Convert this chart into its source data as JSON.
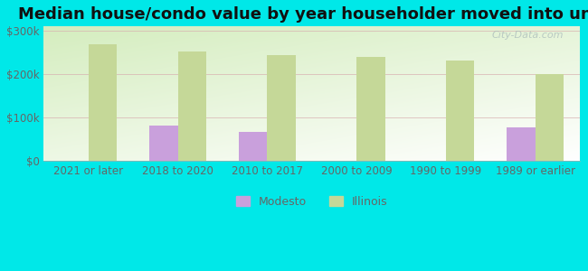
{
  "title": "Median house/condo value by year householder moved into unit",
  "categories": [
    "2021 or later",
    "2018 to 2020",
    "2010 to 2017",
    "2000 to 2009",
    "1990 to 1999",
    "1989 or earlier"
  ],
  "modesto_values": [
    null,
    82000,
    67000,
    null,
    null,
    78000
  ],
  "illinois_values": [
    268000,
    253000,
    243000,
    240000,
    232000,
    201000
  ],
  "modesto_color": "#c9a0dc",
  "illinois_color": "#c5d898",
  "background_color": "#00e8e8",
  "ylabel_ticks": [
    "$0",
    "$100k",
    "$200k",
    "$300k"
  ],
  "ytick_values": [
    0,
    100000,
    200000,
    300000
  ],
  "ylim": [
    0,
    310000
  ],
  "bar_width": 0.32,
  "legend_labels": [
    "Modesto",
    "Illinois"
  ],
  "title_fontsize": 13,
  "tick_fontsize": 8.5,
  "watermark": "City-Data.com",
  "grid_color": "#d8b0b0",
  "tick_color": "#666666"
}
